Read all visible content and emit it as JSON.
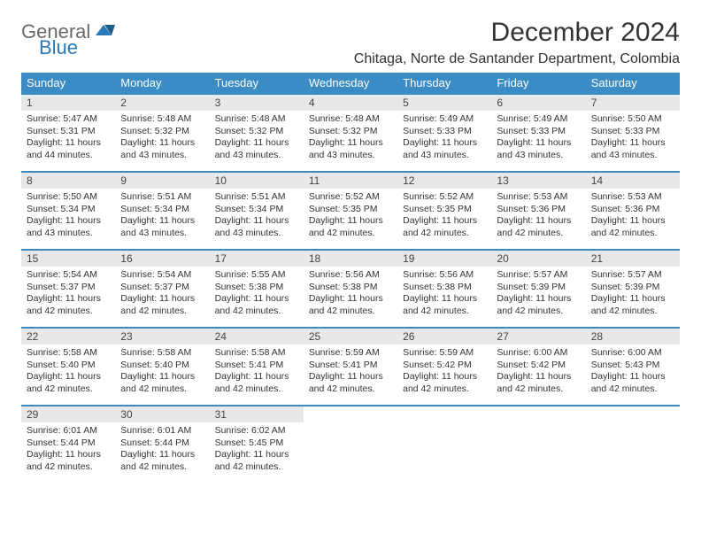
{
  "logo": {
    "line1": "General",
    "line2": "Blue"
  },
  "title": "December 2024",
  "location": "Chitaga, Norte de Santander Department, Colombia",
  "colors": {
    "header_bg": "#3b8bc4",
    "header_text": "#ffffff",
    "daynum_bg": "#e8e8e8",
    "border": "#3b8bc4",
    "text": "#333333",
    "logo_gray": "#6a6a6a",
    "logo_blue": "#2a7ab8"
  },
  "dow": [
    "Sunday",
    "Monday",
    "Tuesday",
    "Wednesday",
    "Thursday",
    "Friday",
    "Saturday"
  ],
  "weeks": [
    [
      {
        "n": "1",
        "sr": "5:47 AM",
        "ss": "5:31 PM",
        "dl": "11 hours and 44 minutes."
      },
      {
        "n": "2",
        "sr": "5:48 AM",
        "ss": "5:32 PM",
        "dl": "11 hours and 43 minutes."
      },
      {
        "n": "3",
        "sr": "5:48 AM",
        "ss": "5:32 PM",
        "dl": "11 hours and 43 minutes."
      },
      {
        "n": "4",
        "sr": "5:48 AM",
        "ss": "5:32 PM",
        "dl": "11 hours and 43 minutes."
      },
      {
        "n": "5",
        "sr": "5:49 AM",
        "ss": "5:33 PM",
        "dl": "11 hours and 43 minutes."
      },
      {
        "n": "6",
        "sr": "5:49 AM",
        "ss": "5:33 PM",
        "dl": "11 hours and 43 minutes."
      },
      {
        "n": "7",
        "sr": "5:50 AM",
        "ss": "5:33 PM",
        "dl": "11 hours and 43 minutes."
      }
    ],
    [
      {
        "n": "8",
        "sr": "5:50 AM",
        "ss": "5:34 PM",
        "dl": "11 hours and 43 minutes."
      },
      {
        "n": "9",
        "sr": "5:51 AM",
        "ss": "5:34 PM",
        "dl": "11 hours and 43 minutes."
      },
      {
        "n": "10",
        "sr": "5:51 AM",
        "ss": "5:34 PM",
        "dl": "11 hours and 43 minutes."
      },
      {
        "n": "11",
        "sr": "5:52 AM",
        "ss": "5:35 PM",
        "dl": "11 hours and 42 minutes."
      },
      {
        "n": "12",
        "sr": "5:52 AM",
        "ss": "5:35 PM",
        "dl": "11 hours and 42 minutes."
      },
      {
        "n": "13",
        "sr": "5:53 AM",
        "ss": "5:36 PM",
        "dl": "11 hours and 42 minutes."
      },
      {
        "n": "14",
        "sr": "5:53 AM",
        "ss": "5:36 PM",
        "dl": "11 hours and 42 minutes."
      }
    ],
    [
      {
        "n": "15",
        "sr": "5:54 AM",
        "ss": "5:37 PM",
        "dl": "11 hours and 42 minutes."
      },
      {
        "n": "16",
        "sr": "5:54 AM",
        "ss": "5:37 PM",
        "dl": "11 hours and 42 minutes."
      },
      {
        "n": "17",
        "sr": "5:55 AM",
        "ss": "5:38 PM",
        "dl": "11 hours and 42 minutes."
      },
      {
        "n": "18",
        "sr": "5:56 AM",
        "ss": "5:38 PM",
        "dl": "11 hours and 42 minutes."
      },
      {
        "n": "19",
        "sr": "5:56 AM",
        "ss": "5:38 PM",
        "dl": "11 hours and 42 minutes."
      },
      {
        "n": "20",
        "sr": "5:57 AM",
        "ss": "5:39 PM",
        "dl": "11 hours and 42 minutes."
      },
      {
        "n": "21",
        "sr": "5:57 AM",
        "ss": "5:39 PM",
        "dl": "11 hours and 42 minutes."
      }
    ],
    [
      {
        "n": "22",
        "sr": "5:58 AM",
        "ss": "5:40 PM",
        "dl": "11 hours and 42 minutes."
      },
      {
        "n": "23",
        "sr": "5:58 AM",
        "ss": "5:40 PM",
        "dl": "11 hours and 42 minutes."
      },
      {
        "n": "24",
        "sr": "5:58 AM",
        "ss": "5:41 PM",
        "dl": "11 hours and 42 minutes."
      },
      {
        "n": "25",
        "sr": "5:59 AM",
        "ss": "5:41 PM",
        "dl": "11 hours and 42 minutes."
      },
      {
        "n": "26",
        "sr": "5:59 AM",
        "ss": "5:42 PM",
        "dl": "11 hours and 42 minutes."
      },
      {
        "n": "27",
        "sr": "6:00 AM",
        "ss": "5:42 PM",
        "dl": "11 hours and 42 minutes."
      },
      {
        "n": "28",
        "sr": "6:00 AM",
        "ss": "5:43 PM",
        "dl": "11 hours and 42 minutes."
      }
    ],
    [
      {
        "n": "29",
        "sr": "6:01 AM",
        "ss": "5:44 PM",
        "dl": "11 hours and 42 minutes."
      },
      {
        "n": "30",
        "sr": "6:01 AM",
        "ss": "5:44 PM",
        "dl": "11 hours and 42 minutes."
      },
      {
        "n": "31",
        "sr": "6:02 AM",
        "ss": "5:45 PM",
        "dl": "11 hours and 42 minutes."
      },
      null,
      null,
      null,
      null
    ]
  ],
  "labels": {
    "sunrise": "Sunrise:",
    "sunset": "Sunset:",
    "daylight": "Daylight:"
  }
}
